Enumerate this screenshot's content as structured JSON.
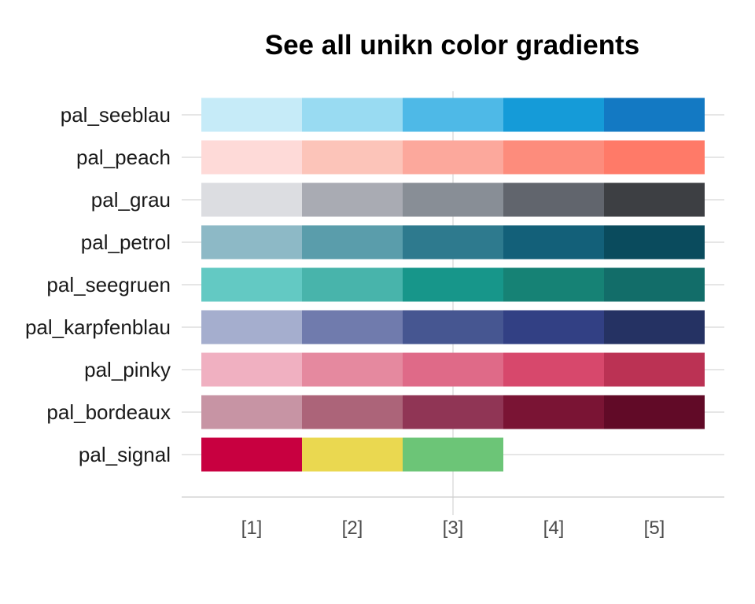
{
  "chart_data": {
    "type": "heatmap",
    "title": "See all unikn color gradients",
    "xlabel": "",
    "ylabel": "",
    "x_ticks": [
      "[1]",
      "[2]",
      "[3]",
      "[4]",
      "[5]"
    ],
    "grid": true,
    "legend": "none",
    "palettes": [
      {
        "name": "pal_seeblau",
        "colors": [
          "#c6ebf8",
          "#99dbf2",
          "#4eb9e7",
          "#159bd8",
          "#1379c3"
        ]
      },
      {
        "name": "pal_peach",
        "colors": [
          "#fedad8",
          "#fcc4b9",
          "#fca89c",
          "#fd8c7c",
          "#ff7a68"
        ]
      },
      {
        "name": "pal_grau",
        "colors": [
          "#dcdde1",
          "#a9abb3",
          "#888e96",
          "#61656d",
          "#3d3f43"
        ]
      },
      {
        "name": "pal_petrol",
        "colors": [
          "#8db9c6",
          "#5a9dab",
          "#2e7a8e",
          "#136079",
          "#0a4b5d"
        ]
      },
      {
        "name": "pal_seegruen",
        "colors": [
          "#63c9c3",
          "#48b4ab",
          "#17968a",
          "#168275",
          "#126d69"
        ]
      },
      {
        "name": "pal_karpfenblau",
        "colors": [
          "#a5aece",
          "#707bad",
          "#465691",
          "#324084",
          "#253263"
        ]
      },
      {
        "name": "pal_pinky",
        "colors": [
          "#f0b0c1",
          "#e5899f",
          "#df6a88",
          "#d7486c",
          "#bb3254"
        ]
      },
      {
        "name": "pal_bordeaux",
        "colors": [
          "#c794a4",
          "#ac6479",
          "#903555",
          "#7a1434",
          "#610a27"
        ]
      },
      {
        "name": "pal_signal",
        "colors": [
          "#c80040",
          "#ead850",
          "#6cc577"
        ]
      }
    ]
  }
}
